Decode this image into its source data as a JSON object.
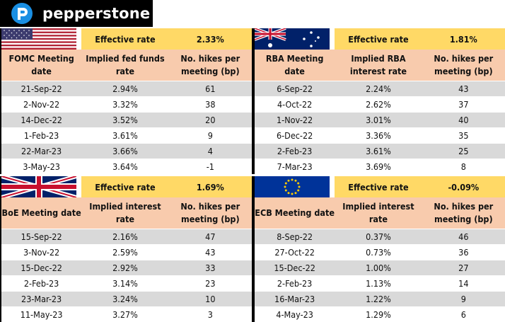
{
  "brand": {
    "name": "pepperstone"
  },
  "colors": {
    "effective_rate_bg": "#ffd966",
    "header_bg": "#f8cbad",
    "row_alt_bg": "#d9d9d9",
    "logo_blue": "#1a8fe3"
  },
  "panels": [
    {
      "id": "us",
      "flag_icon": "us-flag-icon",
      "effective_rate_label": "Effective rate",
      "effective_rate_value": "2.33%",
      "headers": [
        "FOMC Meeting date",
        "Implied fed funds rate",
        "No. hikes per meeting (bp)"
      ],
      "rows": [
        [
          "21-Sep-22",
          "2.94%",
          "61"
        ],
        [
          "2-Nov-22",
          "3.32%",
          "38"
        ],
        [
          "14-Dec-22",
          "3.52%",
          "20"
        ],
        [
          "1-Feb-23",
          "3.61%",
          "9"
        ],
        [
          "22-Mar-23",
          "3.66%",
          "4"
        ],
        [
          "3-May-23",
          "3.64%",
          "-1"
        ]
      ]
    },
    {
      "id": "au",
      "flag_icon": "australia-flag-icon",
      "effective_rate_label": "Effective rate",
      "effective_rate_value": "1.81%",
      "headers": [
        "RBA Meeting date",
        "Implied RBA interest rate",
        "No. hikes per meeting (bp)"
      ],
      "rows": [
        [
          "6-Sep-22",
          "2.24%",
          "43"
        ],
        [
          "4-Oct-22",
          "2.62%",
          "37"
        ],
        [
          "1-Nov-22",
          "3.01%",
          "40"
        ],
        [
          "6-Dec-22",
          "3.36%",
          "35"
        ],
        [
          "2-Feb-23",
          "3.61%",
          "25"
        ],
        [
          "7-Mar-23",
          "3.69%",
          "8"
        ]
      ]
    },
    {
      "id": "uk",
      "flag_icon": "uk-flag-icon",
      "effective_rate_label": "Effective rate",
      "effective_rate_value": "1.69%",
      "headers": [
        "BoE Meeting date",
        "Implied interest rate",
        "No. hikes per meeting (bp)"
      ],
      "rows": [
        [
          "15-Sep-22",
          "2.16%",
          "47"
        ],
        [
          "3-Nov-22",
          "2.59%",
          "43"
        ],
        [
          "15-Dec-22",
          "2.92%",
          "33"
        ],
        [
          "2-Feb-23",
          "3.14%",
          "23"
        ],
        [
          "23-Mar-23",
          "3.24%",
          "10"
        ],
        [
          "11-May-23",
          "3.27%",
          "3"
        ]
      ]
    },
    {
      "id": "eu",
      "flag_icon": "eu-flag-icon",
      "effective_rate_label": "Effective rate",
      "effective_rate_value": "-0.09%",
      "headers": [
        "ECB Meeting date",
        "Implied interest rate",
        "No. hikes per meeting (bp)"
      ],
      "rows": [
        [
          "8-Sep-22",
          "0.37%",
          "46"
        ],
        [
          "27-Oct-22",
          "0.73%",
          "36"
        ],
        [
          "15-Dec-22",
          "1.00%",
          "27"
        ],
        [
          "2-Feb-23",
          "1.13%",
          "14"
        ],
        [
          "16-Mar-23",
          "1.22%",
          "9"
        ],
        [
          "4-May-23",
          "1.29%",
          "6"
        ]
      ]
    }
  ]
}
